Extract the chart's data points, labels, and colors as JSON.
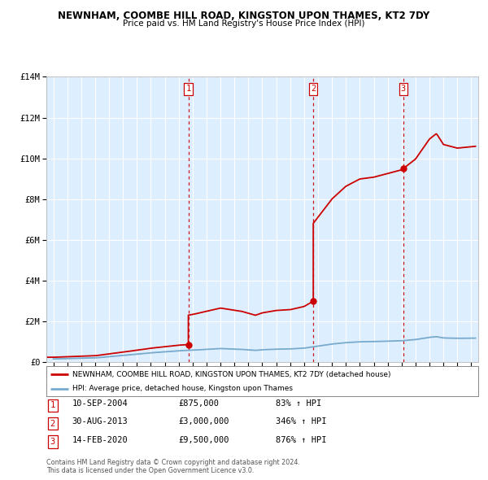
{
  "title": "NEWNHAM, COOMBE HILL ROAD, KINGSTON UPON THAMES, KT2 7DY",
  "subtitle": "Price paid vs. HM Land Registry's House Price Index (HPI)",
  "legend_line1": "NEWNHAM, COOMBE HILL ROAD, KINGSTON UPON THAMES, KT2 7DY (detached house)",
  "legend_line2": "HPI: Average price, detached house, Kingston upon Thames",
  "footer1": "Contains HM Land Registry data © Crown copyright and database right 2024.",
  "footer2": "This data is licensed under the Open Government Licence v3.0.",
  "sale_events": [
    {
      "num": 1,
      "date": "10-SEP-2004",
      "price": 875000,
      "pct": "83%",
      "x": 2004.69
    },
    {
      "num": 2,
      "date": "30-AUG-2013",
      "price": 3000000,
      "pct": "346%",
      "x": 2013.66
    },
    {
      "num": 3,
      "date": "14-FEB-2020",
      "price": 9500000,
      "pct": "876%",
      "x": 2020.12
    }
  ],
  "ylim": [
    0,
    14000000
  ],
  "xlim": [
    1994.5,
    2025.5
  ],
  "yticks": [
    0,
    2000000,
    4000000,
    6000000,
    8000000,
    10000000,
    12000000,
    14000000
  ],
  "ytick_labels": [
    "£0",
    "£2M",
    "£4M",
    "£6M",
    "£8M",
    "£10M",
    "£12M",
    "£14M"
  ],
  "xticks": [
    1995,
    1996,
    1997,
    1998,
    1999,
    2000,
    2001,
    2002,
    2003,
    2004,
    2005,
    2006,
    2007,
    2008,
    2009,
    2010,
    2011,
    2012,
    2013,
    2014,
    2015,
    2016,
    2017,
    2018,
    2019,
    2020,
    2021,
    2022,
    2023,
    2024,
    2025
  ],
  "red_color": "#cc0000",
  "blue_color": "#77aacc",
  "bg_color": "#ddeeff",
  "grid_color": "#ffffff",
  "vline_color": "#cc0000"
}
